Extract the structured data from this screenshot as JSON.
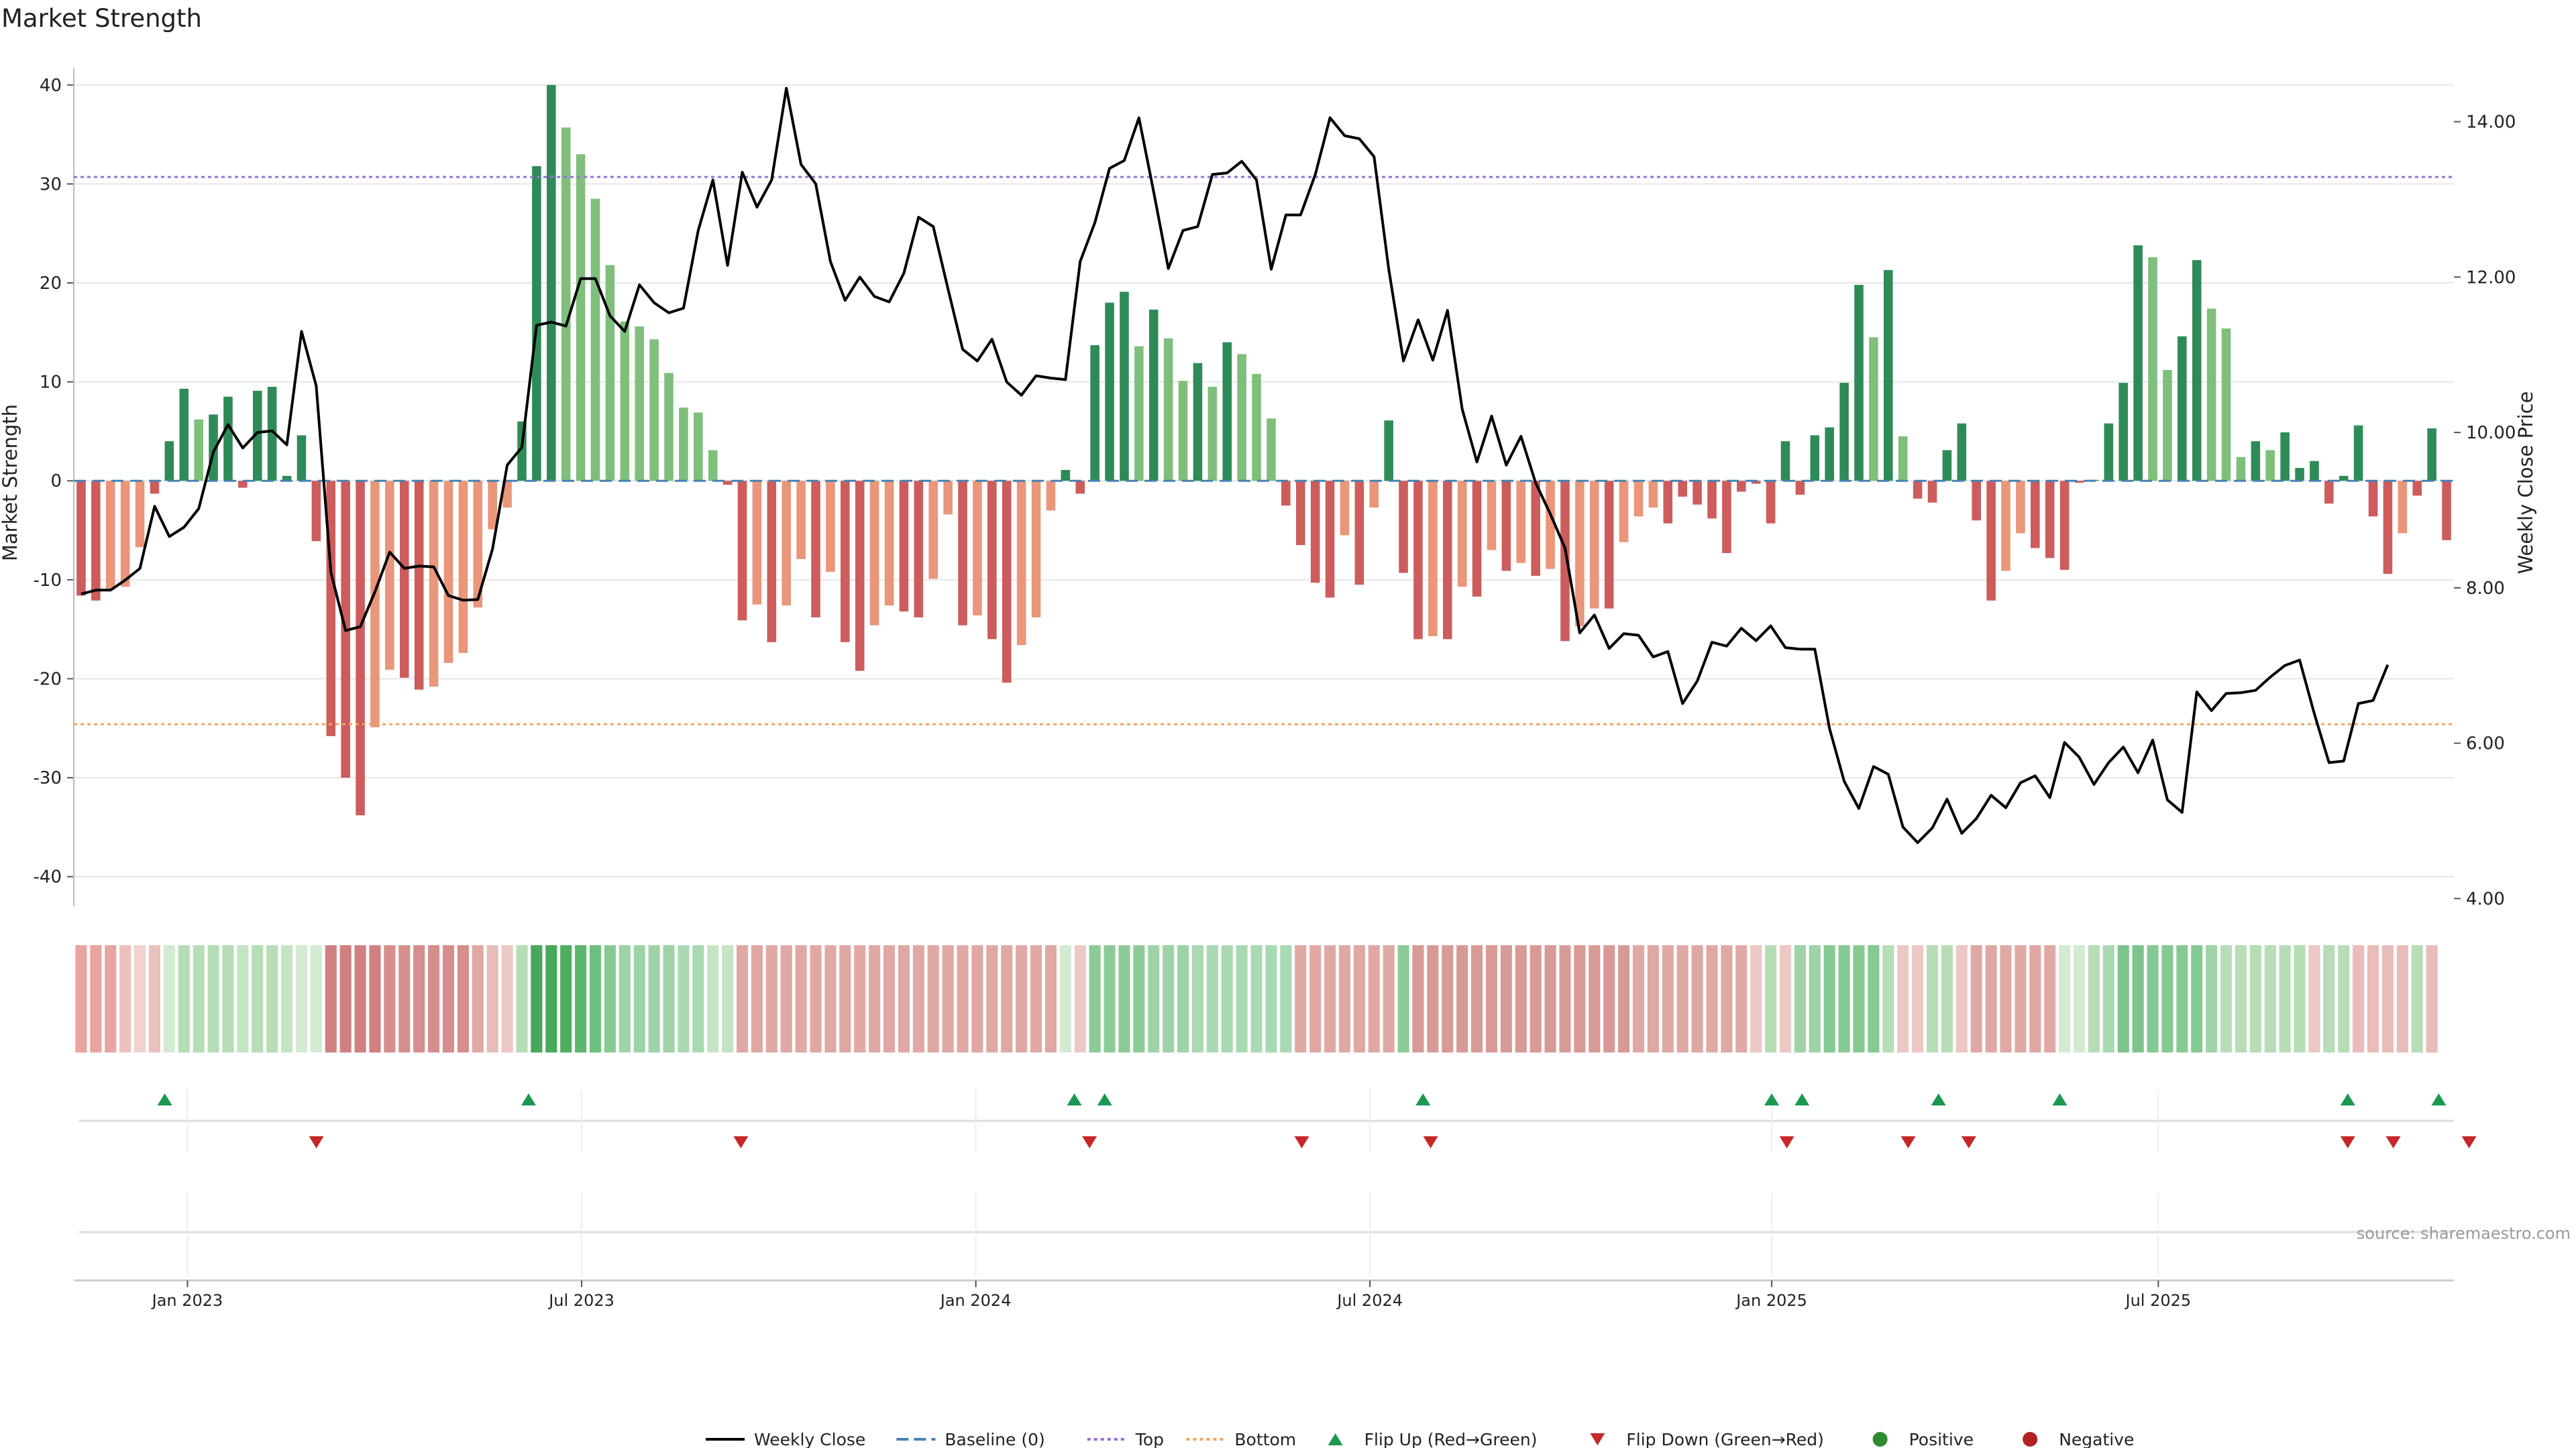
{
  "title": "Market Strength",
  "source": "source: sharemaestro.com",
  "colors": {
    "strong_green": "#2e8b57",
    "light_green": "#7fbf7b",
    "strong_red": "#cd5c5c",
    "light_red": "#e9967a",
    "price_line": "#000000",
    "top_line": "#9370db",
    "bottom_line": "#f4a460",
    "baseline": "#4682b4",
    "flip_up": "#1a9850",
    "flip_down": "#c62828",
    "positive": "#2e8b2e",
    "negative": "#b22222"
  },
  "chart_data": {
    "type": "bar",
    "ylabel_left": "Market Strength",
    "ylabel_right": "Weekly Close Price",
    "ylim_left": [
      -43,
      41
    ],
    "ylim_right": [
      3.9,
      14.6
    ],
    "yticks_left": [
      40,
      30,
      20,
      10,
      0,
      -10,
      -20,
      -30,
      -40
    ],
    "yticks_right": [
      "14.00",
      "12.00",
      "10.00",
      "8.00",
      "6.00",
      "4.00"
    ],
    "x_range_weeks": [
      0,
      157
    ],
    "x_ticks": [
      {
        "label": "Jan 2023",
        "week": 7.5
      },
      {
        "label": "Jul 2023",
        "week": 33.5
      },
      {
        "label": "Jan 2024",
        "week": 59.5
      },
      {
        "label": "Jul 2024",
        "week": 85.5
      },
      {
        "label": "Jan 2025",
        "week": 112
      },
      {
        "label": "Jul 2025",
        "week": 137.5
      }
    ],
    "top_level": 30.7,
    "bottom_level": -24.6,
    "grid": true,
    "strength": [
      -11.6,
      -12.1,
      -10.9,
      -10.7,
      -6.7,
      -1.3,
      4.0,
      9.3,
      6.2,
      6.7,
      8.5,
      -0.7,
      9.1,
      9.5,
      0.5,
      4.6,
      -6.1,
      -25.8,
      -30.0,
      -33.8,
      -24.9,
      -19.1,
      -19.9,
      -21.1,
      -20.8,
      -18.4,
      -17.4,
      -12.8,
      -4.9,
      -2.7,
      6.0,
      31.8,
      40.0,
      35.7,
      33.0,
      28.5,
      21.8,
      16.1,
      15.6,
      14.3,
      10.9,
      7.4,
      6.9,
      3.1,
      -0.4,
      -14.1,
      -12.5,
      -16.3,
      -12.6,
      -7.9,
      -13.8,
      -9.2,
      -16.3,
      -19.2,
      -14.6,
      -12.6,
      -13.2,
      -13.8,
      -9.9,
      -3.4,
      -14.6,
      -13.6,
      -16.0,
      -20.4,
      -16.6,
      -13.8,
      -3.0,
      1.1,
      -1.3,
      13.7,
      18.0,
      19.1,
      13.6,
      17.3,
      14.4,
      10.1,
      11.9,
      9.5,
      14.0,
      12.8,
      10.8,
      6.3,
      -2.5,
      -6.5,
      -10.3,
      -11.8,
      -5.5,
      -10.5,
      -2.7,
      6.1,
      -9.3,
      -16.0,
      -15.7,
      -16.0,
      -10.7,
      -11.7,
      -7.0,
      -9.1,
      -8.3,
      -9.6,
      -8.9,
      -16.2,
      -14.7,
      -12.9,
      -12.9,
      -6.2,
      -3.6,
      -2.7,
      -4.3,
      -1.6,
      -2.4,
      -3.8,
      -7.3,
      -1.1,
      -0.3,
      -4.3,
      4.0,
      -1.4,
      4.6,
      5.4,
      9.9,
      19.8,
      14.5,
      21.3,
      4.5,
      -1.8,
      -2.2,
      3.1,
      5.8,
      -4.0,
      -12.1,
      -9.1,
      -5.3,
      -6.8,
      -7.8,
      -9.0,
      -0.2,
      0.1,
      5.8,
      9.9,
      23.8,
      22.6,
      11.2,
      14.6,
      22.3,
      17.4,
      15.4,
      2.4,
      4.0,
      3.1,
      4.9,
      1.3,
      2.0,
      -2.3,
      0.5,
      5.6,
      -3.6,
      -9.4,
      -5.3,
      -1.5,
      5.3,
      -6.0
    ],
    "colorbar_shades": [
      "#e8a4a0",
      "#e8a4a0",
      "#e8a4a0",
      "#ecc0bc",
      "#f0d2cf",
      "#ecc0bc",
      "#d3ead3",
      "#b6ddb6",
      "#b6ddb6",
      "#b6ddb6",
      "#b6ddb6",
      "#c4e4c4",
      "#b6ddb6",
      "#b6ddb6",
      "#c4e4c4",
      "#d3ead3",
      "#d3ead3",
      "#d08080",
      "#d08080",
      "#d08080",
      "#d08080",
      "#d58e8c",
      "#d58e8c",
      "#d58e8c",
      "#d58e8c",
      "#d58e8c",
      "#d58e8c",
      "#e0a8a4",
      "#e8bcb8",
      "#ecc8c4",
      "#b6ddb6",
      "#48a85a",
      "#48a85a",
      "#4fae60",
      "#5cb66e",
      "#6dbf7d",
      "#85c993",
      "#9dd3a7",
      "#9dd3a7",
      "#9dd3a7",
      "#9dd3a7",
      "#a9d9b3",
      "#a9d9b3",
      "#c4e4c4",
      "#c4e4c4",
      "#e0a8a4",
      "#e0a8a4",
      "#e0a8a4",
      "#e0a8a4",
      "#e0a8a4",
      "#e0a8a4",
      "#e0a8a4",
      "#e0a8a4",
      "#e0a8a4",
      "#e0a8a4",
      "#e0a8a4",
      "#e0a8a4",
      "#e0a8a4",
      "#e0a8a4",
      "#e0a8a4",
      "#e0a8a4",
      "#e0a8a4",
      "#e0a8a4",
      "#e0a8a4",
      "#e0a8a4",
      "#e0a8a4",
      "#e0a8a4",
      "#d3ead3",
      "#ecc8c4",
      "#8ccb98",
      "#8ccb98",
      "#8ccb98",
      "#8ccb98",
      "#9dd3a7",
      "#9dd3a7",
      "#9dd3a7",
      "#a9d9b3",
      "#a9d9b3",
      "#a9d9b3",
      "#a9d9b3",
      "#a9d9b3",
      "#a9d9b3",
      "#a9d9b3",
      "#e0a8a4",
      "#e0a8a4",
      "#e0a8a4",
      "#e0a8a4",
      "#e0a8a4",
      "#e0a8a4",
      "#e0a8a4",
      "#8ccb98",
      "#d89a96",
      "#d89a96",
      "#d89a96",
      "#d89a96",
      "#d89a96",
      "#d89a96",
      "#d89a96",
      "#d89a96",
      "#d89a96",
      "#d89a96",
      "#d89a96",
      "#d89a96",
      "#d89a96",
      "#d89a96",
      "#d89a96",
      "#e0a8a4",
      "#e0a8a4",
      "#e0a8a4",
      "#e0a8a4",
      "#e0a8a4",
      "#e0a8a4",
      "#e0a8a4",
      "#e0a8a4",
      "#ecc8c4",
      "#b6ddb6",
      "#ecc8c4",
      "#9dd3a7",
      "#9dd3a7",
      "#85c993",
      "#85c993",
      "#85c993",
      "#85c993",
      "#b6ddb6",
      "#ecc8c4",
      "#ecc8c4",
      "#b6ddb6",
      "#b6ddb6",
      "#ecc8c4",
      "#e0a8a4",
      "#e0a8a4",
      "#e0a8a4",
      "#e0a8a4",
      "#e0a8a4",
      "#e0a8a4",
      "#d3ead3",
      "#d3ead3",
      "#b6ddb6",
      "#a9d9b3",
      "#7cc48b",
      "#7cc48b",
      "#85c993",
      "#85c993",
      "#85c993",
      "#85c993",
      "#9dd3a7",
      "#b6ddb6",
      "#b6ddb6",
      "#b6ddb6",
      "#b6ddb6",
      "#b6ddb6",
      "#b6ddb6",
      "#ecc8c4",
      "#b6ddb6",
      "#b6ddb6",
      "#e8bcb8",
      "#e8bcb8",
      "#e8bcb8",
      "#e8bcb8",
      "#b6ddb6",
      "#e8bcb8"
    ],
    "price": [
      7.92,
      7.97,
      7.97,
      8.1,
      8.25,
      9.05,
      8.66,
      8.78,
      9.02,
      9.75,
      10.1,
      9.8,
      10.0,
      10.02,
      9.84,
      11.3,
      10.6,
      8.2,
      7.45,
      7.5,
      7.95,
      8.46,
      8.25,
      8.28,
      8.27,
      7.9,
      7.84,
      7.85,
      8.5,
      9.58,
      9.81,
      11.38,
      11.42,
      11.37,
      11.98,
      11.98,
      11.5,
      11.3,
      11.9,
      11.67,
      11.54,
      11.6,
      12.6,
      13.25,
      12.15,
      13.35,
      12.9,
      13.25,
      14.43,
      13.45,
      13.2,
      12.2,
      11.7,
      12.0,
      11.75,
      11.68,
      12.05,
      12.77,
      12.65,
      11.85,
      11.07,
      10.92,
      11.2,
      10.65,
      10.48,
      10.73,
      10.7,
      10.68,
      12.2,
      12.7,
      13.4,
      13.5,
      14.05,
      13.1,
      12.11,
      12.6,
      12.65,
      13.32,
      13.34,
      13.49,
      13.25,
      12.1,
      12.8,
      12.8,
      13.32,
      14.05,
      13.82,
      13.78,
      13.55,
      12.1,
      10.92,
      11.45,
      10.93,
      11.57,
      10.3,
      9.62,
      10.21,
      9.58,
      9.95,
      9.35,
      8.95,
      8.51,
      7.42,
      7.65,
      7.22,
      7.41,
      7.39,
      7.11,
      7.18,
      6.51,
      6.8,
      7.3,
      7.25,
      7.48,
      7.32,
      7.51,
      7.23,
      7.21,
      7.21,
      6.19,
      5.51,
      5.16,
      5.7,
      5.6,
      4.92,
      4.72,
      4.91,
      5.28,
      4.84,
      5.03,
      5.33,
      5.17,
      5.49,
      5.58,
      5.3,
      6.01,
      5.82,
      5.47,
      5.75,
      5.95,
      5.62,
      6.04,
      5.27,
      5.11,
      6.66,
      6.42,
      6.64,
      6.65,
      6.68,
      6.85,
      7.0,
      7.07,
      6.38,
      5.75,
      5.77,
      6.51,
      6.55,
      7.01
    ],
    "flips_up_weeks": [
      6,
      30,
      66,
      68,
      89,
      112,
      114,
      123,
      131,
      150,
      156
    ],
    "flips_down_weeks": [
      16,
      44,
      67,
      81,
      89.5,
      113,
      121,
      125,
      150,
      153,
      158
    ],
    "legend": [
      {
        "label": "Weekly Close",
        "kind": "line-solid",
        "color": "#000000"
      },
      {
        "label": "Baseline (0)",
        "kind": "line-dash",
        "color": "#4682b4"
      },
      {
        "label": "Top",
        "kind": "line-dot",
        "color": "#9370db"
      },
      {
        "label": "Bottom",
        "kind": "line-dot",
        "color": "#f4a460"
      },
      {
        "label": "Flip Up (Red→Green)",
        "kind": "tri-up",
        "color": "#1a9850"
      },
      {
        "label": "Flip Down (Green→Red)",
        "kind": "tri-down",
        "color": "#c62828"
      },
      {
        "label": "Positive",
        "kind": "dot",
        "color": "#2e8b2e"
      },
      {
        "label": "Negative",
        "kind": "dot",
        "color": "#b22222"
      }
    ]
  }
}
